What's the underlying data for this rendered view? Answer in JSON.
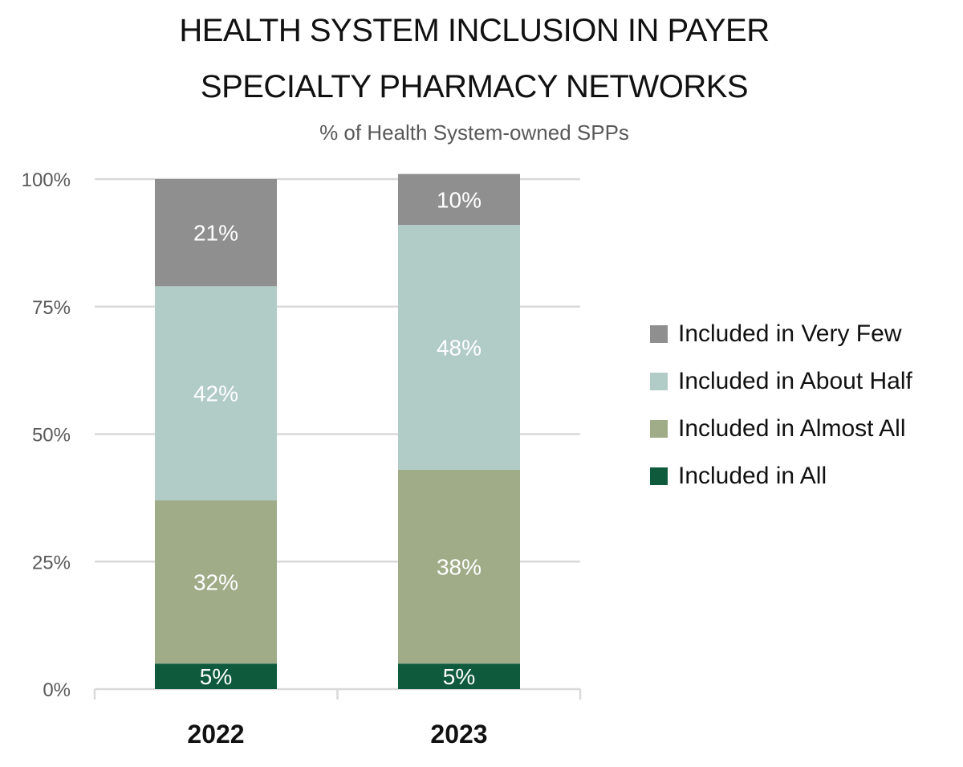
{
  "chart_data": {
    "type": "bar",
    "stacked": true,
    "title_lines": [
      "HEALTH SYSTEM INCLUSION IN PAYER",
      "SPECIALTY PHARMACY NETWORKS"
    ],
    "subtitle": "% of Health System-owned SPPs",
    "categories": [
      "2022",
      "2023"
    ],
    "ylim": [
      0,
      100
    ],
    "yticks": [
      0,
      25,
      50,
      75,
      100
    ],
    "ytick_labels": [
      "0%",
      "25%",
      "50%",
      "75%",
      "100%"
    ],
    "grid": true,
    "legend_position": "right",
    "series": [
      {
        "name": "Included in All",
        "values": [
          5,
          5
        ],
        "labels": [
          "5%",
          "5%"
        ],
        "color": "#0f5a3d",
        "label_color": "#ffffff"
      },
      {
        "name": "Included in Almost All",
        "values": [
          32,
          38
        ],
        "labels": [
          "32%",
          "38%"
        ],
        "color": "#a0ac88",
        "label_color": "#ffffff"
      },
      {
        "name": "Included in About Half",
        "values": [
          42,
          48
        ],
        "labels": [
          "42%",
          "48%"
        ],
        "color": "#b1cbc7",
        "label_color": "#ffffff"
      },
      {
        "name": "Included in Very Few",
        "values": [
          21,
          10
        ],
        "labels": [
          "21%",
          "10%"
        ],
        "color": "#8f8f8f",
        "label_color": "#ffffff"
      }
    ],
    "legend_order": [
      "Included in Very Few",
      "Included in About Half",
      "Included in Almost All",
      "Included in All"
    ]
  }
}
